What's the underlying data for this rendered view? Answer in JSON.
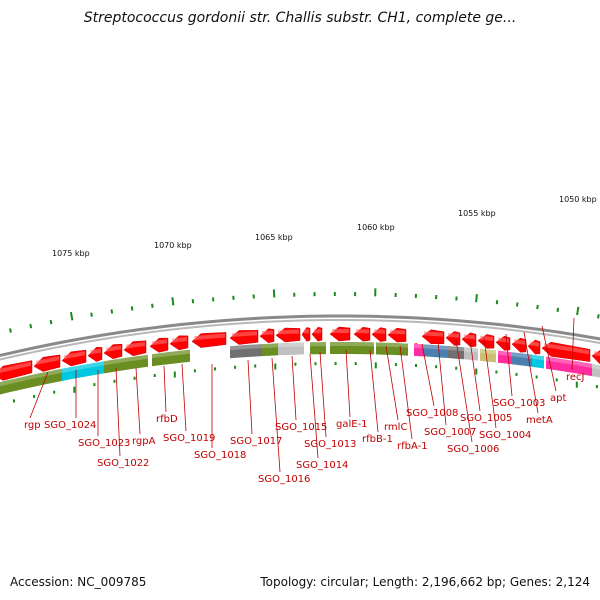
{
  "title": "Streptococcus gordonii str. Challis substr. CH1, complete ge...",
  "footer": {
    "accession": "Accession: NC_009785",
    "topology": "Topology: circular; Length: 2,196,662 bp; Genes: 2,124"
  },
  "scale_labels": [
    "1075 kbp",
    "1070 kbp",
    "1065 kbp",
    "1060 kbp",
    "1055 kbp",
    "1050 kbp"
  ],
  "genes": [
    "rgp",
    "SGO_1024",
    "SGO_1023",
    "SGO_1022",
    "rgpA",
    "rfbD",
    "SGO_1019",
    "SGO_1018",
    "SGO_1017",
    "SGO_1016",
    "SGO_1015",
    "SGO_1014",
    "SGO_1013",
    "galE-1",
    "rfbB-1",
    "rmlC",
    "rfbA-1",
    "SGO_1008",
    "SGO_1007",
    "SGO_1006",
    "SGO_1005",
    "SGO_1004",
    "SGO_1003",
    "metA",
    "apt",
    "recJ"
  ],
  "colors": {
    "gene_forward": "#ff0000",
    "gene_reverse": "#ff0000",
    "backbone": "#8a8a8a",
    "cog_green": "#6b8e23",
    "cog_cyan": "#00c8e0",
    "cog_gray": "#707070",
    "cog_light_gray": "#c0c0c0",
    "cog_magenta": "#ff2ca0",
    "cog_blue": "#4a7fb0",
    "cog_khaki": "#c8c070",
    "tick_green": "#1a8a1a",
    "label_red": "#c00000"
  }
}
